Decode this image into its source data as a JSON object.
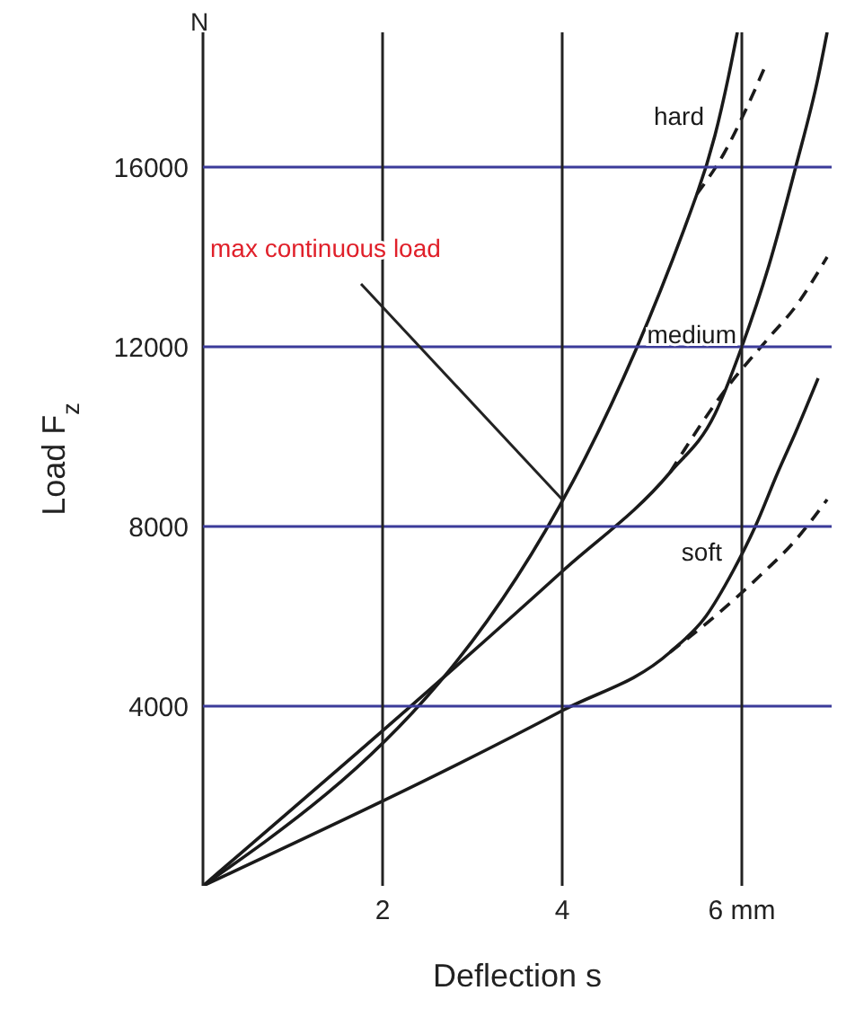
{
  "chart_data": {
    "type": "line",
    "xlabel": "Deflection s",
    "ylabel": "Load F$_{z}$",
    "xlim": [
      0,
      7
    ],
    "ylim": [
      0,
      19000
    ],
    "xticks": [
      2,
      4,
      {
        "value": 6,
        "label": "6 mm"
      }
    ],
    "yticks": [
      4000,
      8000,
      12000,
      16000
    ],
    "grid": true,
    "legend": false,
    "marker": "none",
    "line_style": "solid",
    "annotations": [
      "N",
      {
        "text": "max continuous load",
        "x": 4,
        "y": 8600
      }
    ],
    "series": [
      {
        "name": "hard",
        "color": "#1a1a1a",
        "x": [
          0,
          5.5,
          5.7,
          5.85,
          5.95
        ],
        "values": [
          0,
          15400,
          16700,
          18000,
          19000
        ]
      },
      {
        "color": "#1a1a1a",
        "line_style": "dashed",
        "x": [
          5.5,
          5.8,
          6.05,
          6.25
        ],
        "values": [
          15400,
          16300,
          17300,
          18200
        ]
      },
      {
        "name": "medium",
        "color": "#1a1a1a",
        "x": [
          0,
          4,
          5.2,
          5.7,
          6.0,
          6.3,
          6.6,
          6.85,
          6.95
        ],
        "values": [
          0,
          7000,
          9200,
          10500,
          12000,
          13800,
          16000,
          18000,
          19000
        ]
      },
      {
        "color": "#1a1a1a",
        "line_style": "dashed",
        "x": [
          5.2,
          5.8,
          6.3,
          6.6,
          6.95
        ],
        "values": [
          9200,
          11000,
          12200,
          12900,
          14000
        ]
      },
      {
        "name": "soft",
        "color": "#1a1a1a",
        "x": [
          0,
          4,
          5.2,
          5.6,
          5.9,
          6.15,
          6.4,
          6.6,
          6.85
        ],
        "values": [
          0,
          3900,
          5200,
          6000,
          7000,
          8000,
          9200,
          10100,
          11300
        ]
      },
      {
        "color": "#1a1a1a",
        "line_style": "dashed",
        "x": [
          5.2,
          5.7,
          6.2,
          6.6,
          6.95
        ],
        "values": [
          5200,
          6000,
          6900,
          7700,
          8600
        ]
      }
    ]
  }
}
